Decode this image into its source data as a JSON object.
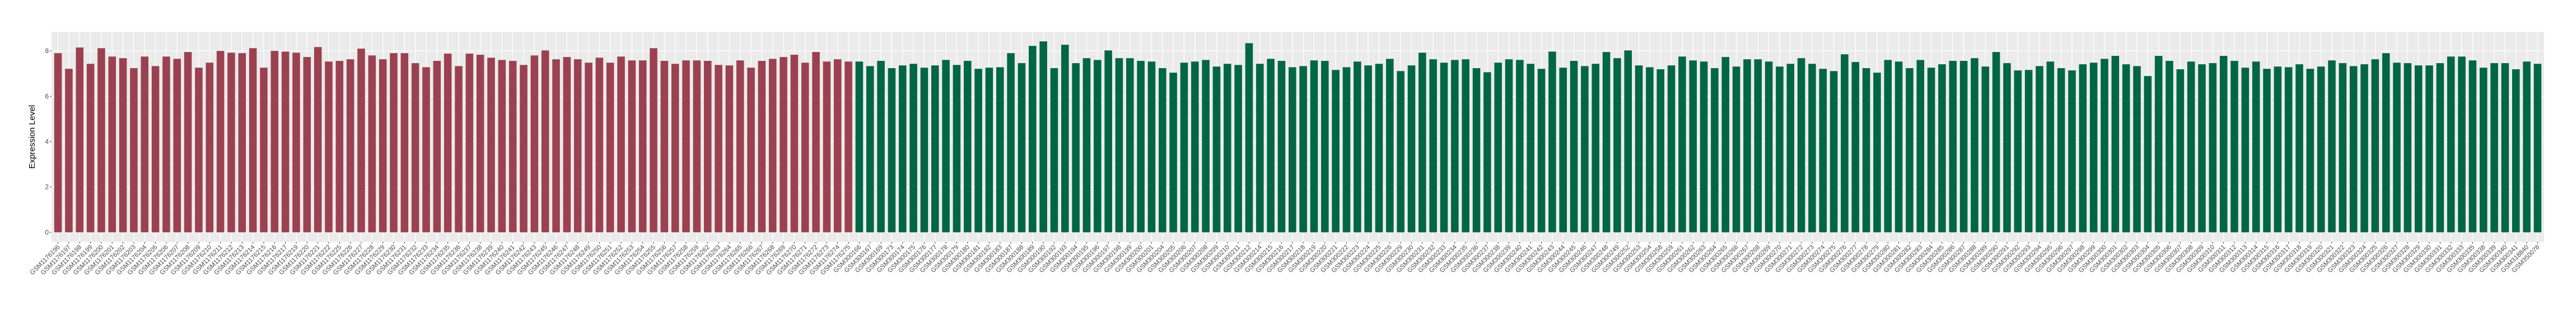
{
  "chart_data": {
    "type": "bar",
    "title": "",
    "xlabel": "",
    "ylabel": "Expression Level",
    "ylim": [
      -0.42,
      8.84
    ],
    "yticks": [
      0,
      2,
      4,
      6,
      8
    ],
    "grid": true,
    "background": "#EBEBEB",
    "series": [
      {
        "color": "#9B4150",
        "categories": [
          "GSM1176196",
          "GSM1176197",
          "GSM1176198",
          "GSM1176199",
          "GSM1176200",
          "GSM1176201",
          "GSM1176202",
          "GSM1176203",
          "GSM1176204",
          "GSM1176205",
          "GSM1176206",
          "GSM1176207",
          "GSM1176208",
          "GSM1176209",
          "GSM1176210",
          "GSM1176211",
          "GSM1176212",
          "GSM1176213",
          "GSM1176214",
          "GSM1176215",
          "GSM1176216",
          "GSM1176217",
          "GSM1176219",
          "GSM1176220",
          "GSM1176221",
          "GSM1176222",
          "GSM1176225",
          "GSM1176226",
          "GSM1176227",
          "GSM1176228",
          "GSM1176229",
          "GSM1176230",
          "GSM1176231",
          "GSM1176232",
          "GSM1176233",
          "GSM1176234",
          "GSM1176235",
          "GSM1176236",
          "GSM1176237",
          "GSM1176238",
          "GSM1176239",
          "GSM1176240",
          "GSM1176241",
          "GSM1176242",
          "GSM1176243",
          "GSM1176245",
          "GSM1176246",
          "GSM1176247",
          "GSM1176248",
          "GSM1176249",
          "GSM1176250",
          "GSM1176251",
          "GSM1176252",
          "GSM1176253",
          "GSM1176254",
          "GSM1176255",
          "GSM1176256",
          "GSM1176257",
          "GSM1176258",
          "GSM1176259",
          "GSM1176262",
          "GSM1176263",
          "GSM1176264",
          "GSM1176265",
          "GSM1176266",
          "GSM1176267",
          "GSM1176268",
          "GSM1176269",
          "GSM1176270",
          "GSM1176271",
          "GSM1176272",
          "GSM1176273",
          "GSM1176274",
          "GSM1176275"
        ],
        "values": [
          7.9,
          7.21,
          8.15,
          7.43,
          8.12,
          7.75,
          7.68,
          7.24,
          7.75,
          7.33,
          7.75,
          7.65,
          7.95,
          7.26,
          7.48,
          8.0,
          7.92,
          7.9,
          8.12,
          7.26,
          8.0,
          7.97,
          7.92,
          7.73,
          8.17,
          7.53,
          7.56,
          7.63,
          8.1,
          7.8,
          7.63,
          7.9,
          7.9,
          7.46,
          7.28,
          7.56,
          7.88,
          7.33,
          7.88,
          7.83,
          7.7,
          7.6,
          7.56,
          7.38,
          7.8,
          8.02,
          7.63,
          7.73,
          7.63,
          7.48,
          7.7,
          7.48,
          7.75,
          7.58,
          7.58,
          8.12,
          7.56,
          7.43,
          7.58,
          7.58,
          7.56,
          7.38,
          7.36,
          7.58,
          7.26,
          7.56,
          7.65,
          7.73,
          7.83,
          7.48,
          7.95,
          7.53,
          7.63,
          7.53
        ]
      },
      {
        "color": "#006644",
        "categories": [
          "GSM300166",
          "GSM300167",
          "GSM300169",
          "GSM300173",
          "GSM300174",
          "GSM300175",
          "GSM300176",
          "GSM300177",
          "GSM300178",
          "GSM300179",
          "GSM300180",
          "GSM300181",
          "GSM300182",
          "GSM300183",
          "GSM300187",
          "GSM300188",
          "GSM300189",
          "GSM300190",
          "GSM300192",
          "GSM300193",
          "GSM300194",
          "GSM300195",
          "GSM300196",
          "GSM300197",
          "GSM300198",
          "GSM300199",
          "GSM300200",
          "GSM300201",
          "GSM300204",
          "GSM300205",
          "GSM300206",
          "GSM300207",
          "GSM300208",
          "GSM300209",
          "GSM300210",
          "GSM300211",
          "GSM300212",
          "GSM300214",
          "GSM300215",
          "GSM300216",
          "GSM300217",
          "GSM300218",
          "GSM300219",
          "GSM300220",
          "GSM300221",
          "GSM300222",
          "GSM300223",
          "GSM300224",
          "GSM300225",
          "GSM300226",
          "GSM300229",
          "GSM300230",
          "GSM300231",
          "GSM300232",
          "GSM300233",
          "GSM300234",
          "GSM300235",
          "GSM300236",
          "GSM300237",
          "GSM300238",
          "GSM300239",
          "GSM300240",
          "GSM300241",
          "GSM300242",
          "GSM300243",
          "GSM300244",
          "GSM300245",
          "GSM300246",
          "GSM300247",
          "GSM300248",
          "GSM300249",
          "GSM300252",
          "GSM300253",
          "GSM300254",
          "GSM300258",
          "GSM300259",
          "GSM300261",
          "GSM300262",
          "GSM300263",
          "GSM300264",
          "GSM300265",
          "GSM300266",
          "GSM300267",
          "GSM300268",
          "GSM300269",
          "GSM300270",
          "GSM300271",
          "GSM300272",
          "GSM300273",
          "GSM300274",
          "GSM300275",
          "GSM300276",
          "GSM300277",
          "GSM300278",
          "GSM300279",
          "GSM300280",
          "GSM300281",
          "GSM300282",
          "GSM300283",
          "GSM300284",
          "GSM300285",
          "GSM300286",
          "GSM300287",
          "GSM300288",
          "GSM300289",
          "GSM300290",
          "GSM300291",
          "GSM300292",
          "GSM300293",
          "GSM300294",
          "GSM300295",
          "GSM300296",
          "GSM300297",
          "GSM300298",
          "GSM300299",
          "GSM300300",
          "GSM300301",
          "GSM300302",
          "GSM300303",
          "GSM300304",
          "GSM300305",
          "GSM300306",
          "GSM300307",
          "GSM300308",
          "GSM300309",
          "GSM300310",
          "GSM300311",
          "GSM300312",
          "GSM300313",
          "GSM300314",
          "GSM300315",
          "GSM300316",
          "GSM300317",
          "GSM300318",
          "GSM300319",
          "GSM300320",
          "GSM300321",
          "GSM300322",
          "GSM300323",
          "GSM300324",
          "GSM300325",
          "GSM300326",
          "GSM300327",
          "GSM300328",
          "GSM300329",
          "GSM300330",
          "GSM300331",
          "GSM300332",
          "GSM300333",
          "GSM300335",
          "GSM300338",
          "GSM300339",
          "GSM300340",
          "GSM300341",
          "GSM318840",
          "GSM350078"
        ],
        "values": [
          7.53,
          7.33,
          7.56,
          7.24,
          7.36,
          7.43,
          7.26,
          7.36,
          7.6,
          7.38,
          7.56,
          7.21,
          7.26,
          7.28,
          7.9,
          7.46,
          8.22,
          8.42,
          7.24,
          8.27,
          7.46,
          7.68,
          7.6,
          8.02,
          7.68,
          7.68,
          7.56,
          7.53,
          7.24,
          7.04,
          7.48,
          7.53,
          7.6,
          7.31,
          7.43,
          7.38,
          8.34,
          7.43,
          7.65,
          7.56,
          7.28,
          7.33,
          7.58,
          7.56,
          7.16,
          7.28,
          7.53,
          7.36,
          7.43,
          7.65,
          7.11,
          7.36,
          7.92,
          7.63,
          7.48,
          7.6,
          7.63,
          7.24,
          7.06,
          7.48,
          7.63,
          7.6,
          7.43,
          7.21,
          7.97,
          7.26,
          7.56,
          7.33,
          7.43,
          7.95,
          7.68,
          8.02,
          7.36,
          7.28,
          7.19,
          7.36,
          7.75,
          7.58,
          7.53,
          7.24,
          7.73,
          7.31,
          7.63,
          7.63,
          7.53,
          7.31,
          7.43,
          7.68,
          7.43,
          7.21,
          7.11,
          7.85,
          7.51,
          7.24,
          7.04,
          7.6,
          7.53,
          7.24,
          7.6,
          7.26,
          7.41,
          7.56,
          7.56,
          7.68,
          7.31,
          7.95,
          7.46,
          7.14,
          7.16,
          7.33,
          7.53,
          7.24,
          7.14,
          7.41,
          7.48,
          7.65,
          7.78,
          7.41,
          7.33,
          6.89,
          7.78,
          7.56,
          7.19,
          7.53,
          7.41,
          7.46,
          7.78,
          7.56,
          7.26,
          7.53,
          7.21,
          7.31,
          7.28,
          7.41,
          7.21,
          7.31,
          7.58,
          7.46,
          7.33,
          7.41,
          7.63,
          7.9,
          7.48,
          7.46,
          7.36,
          7.36,
          7.46,
          7.75,
          7.75,
          7.58,
          7.26,
          7.46,
          7.46,
          7.19,
          7.53,
          7.43
        ]
      }
    ]
  }
}
